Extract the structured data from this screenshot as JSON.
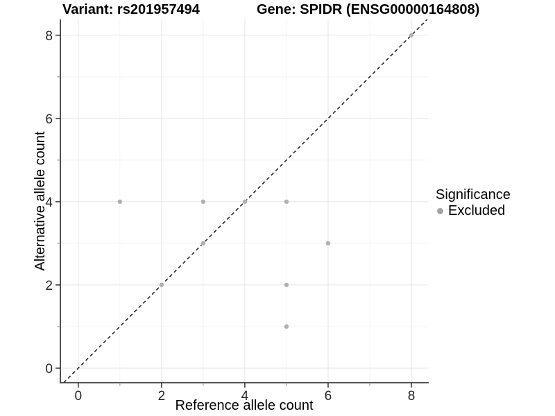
{
  "chart_data": {
    "type": "scatter",
    "title_left": "Variant: rs201957494",
    "title_right": "Gene: SPIDR (ENSG00000164808)",
    "xlabel": "Reference allele count",
    "ylabel": "Alternative allele count",
    "xlim": [
      -0.43,
      8.4
    ],
    "ylim": [
      -0.35,
      8.38
    ],
    "x_ticks_major": [
      0,
      2,
      4,
      6,
      8
    ],
    "x_ticks_minor": [
      1,
      3,
      5,
      7
    ],
    "y_ticks_major": [
      0,
      2,
      4,
      6,
      8
    ],
    "y_ticks_minor": [
      1,
      3,
      5,
      7
    ],
    "grid": "major+minor",
    "identity_line": {
      "equation": "y = x",
      "style": "dashed",
      "color": "#000000"
    },
    "series": [
      {
        "name": "Excluded",
        "color": "#b0b0b0",
        "points": [
          [
            1,
            4
          ],
          [
            2,
            2
          ],
          [
            3,
            3
          ],
          [
            3,
            4
          ],
          [
            4,
            4
          ],
          [
            5,
            1
          ],
          [
            5,
            2
          ],
          [
            5,
            4
          ],
          [
            6,
            3
          ],
          [
            8,
            8
          ]
        ]
      }
    ],
    "legend": {
      "title": "Significance",
      "position": "right",
      "entries": [
        {
          "label": "Excluded",
          "color": "#a3a3a3"
        }
      ]
    }
  },
  "colors": {
    "grid_major": "#e8e8e8",
    "grid_minor": "#f4f4f4",
    "axis_line": "#3c3c3c",
    "tick_major": "#333333",
    "tick_minor": "#999999",
    "tick_text": "#262626",
    "background": "#ffffff"
  }
}
